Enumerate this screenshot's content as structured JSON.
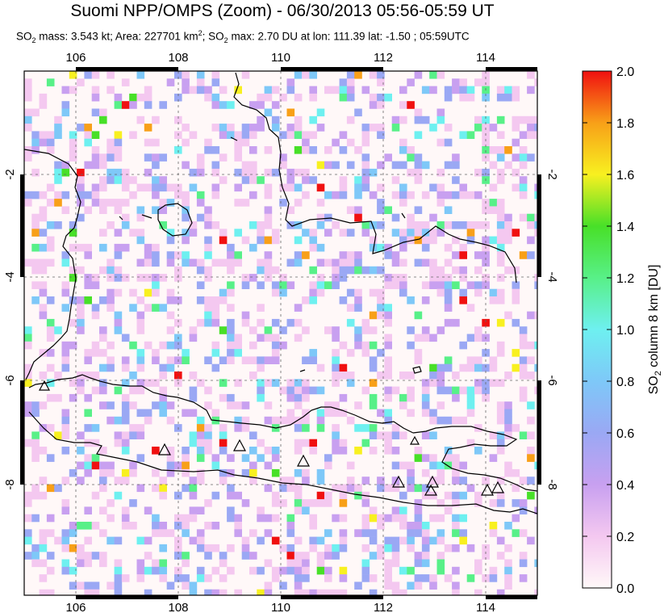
{
  "title": "Suomi NPP/OMPS (Zoom) - 06/30/2013 05:56-05:59 UT",
  "subtitle": {
    "so2_prefix": "SO",
    "so2_sub": "2",
    "mass_text": " mass: 3.543 kt; Area: 227701 km",
    "area_sup": "2",
    "max_prefix": "; SO",
    "max_sub": "2",
    "max_text": " max: 2.70 DU at lon: 111.39 lat: -1.50 ; 05:59UTC"
  },
  "map": {
    "lon_ticks": [
      "106",
      "108",
      "110",
      "112",
      "114"
    ],
    "lat_ticks": [
      "-2",
      "-4",
      "-6",
      "-8"
    ],
    "volcano_marker": "triangle-outline",
    "volcano_count": 10,
    "coastline_color": "#000000"
  },
  "colorbar": {
    "title": "SO2 column 8 km [DU]",
    "title_main": "SO",
    "title_sub": "2",
    "title_rest": " column 8 km [DU]",
    "min": 0.0,
    "max": 2.0,
    "ticks": [
      "0.0",
      "0.2",
      "0.4",
      "0.6",
      "0.8",
      "1.0",
      "1.2",
      "1.4",
      "1.6",
      "1.8",
      "2.0"
    ],
    "colors": [
      "#fff8f8",
      "#f4c8f0",
      "#c8a0f0",
      "#9aa8f4",
      "#7ec8f8",
      "#6ef0f0",
      "#58f088",
      "#48e028",
      "#f8f020",
      "#f8a018",
      "#f01010"
    ]
  }
}
